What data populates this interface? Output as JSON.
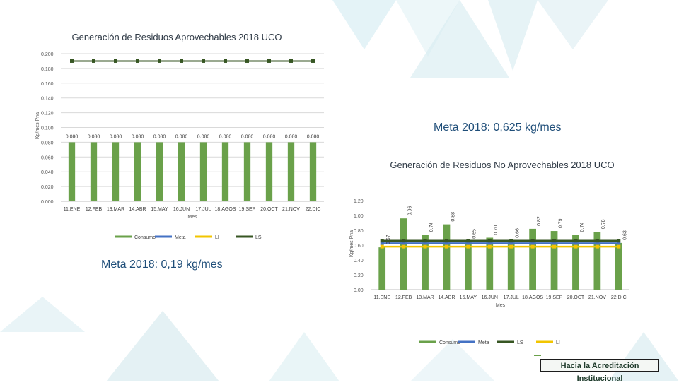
{
  "slide": {
    "meta_aprovechables": "Meta 2018: 0,19 kg/mes",
    "meta_no_aprovechables": "Meta 2018: 0,625 kg/mes",
    "logo_text": "Hacia la Acreditación Institucional"
  },
  "colors": {
    "consumo": "#6aa14a",
    "meta": "#4472c4",
    "li": "#f2c500",
    "ls": "#375623",
    "background_shapes": "#cfe6ec"
  },
  "chart_data": [
    {
      "type": "bar",
      "title": "Generación de Residuos Aprovechables 2018 UCO",
      "xlabel": "Mes",
      "ylabel": "Kg/mes Pna",
      "ylim": [
        0,
        0.2
      ],
      "yticks": [
        "0.000",
        "0.020",
        "0.040",
        "0.060",
        "0.080",
        "0.100",
        "0.120",
        "0.140",
        "0.160",
        "0.180",
        "0.200"
      ],
      "categories": [
        "11.ENE",
        "12.FEB",
        "13.MAR",
        "14.ABR",
        "15.MAY",
        "16.JUN",
        "17.JUL",
        "18.AGOS",
        "19.SEP",
        "20.OCT",
        "21.NOV",
        "22.DIC"
      ],
      "bar_series": {
        "name": "Consumo",
        "values": [
          0.08,
          0.08,
          0.08,
          0.08,
          0.08,
          0.08,
          0.08,
          0.08,
          0.08,
          0.08,
          0.08,
          0.08
        ]
      },
      "data_labels": [
        "0.080",
        "0.080",
        "0.080",
        "0.080",
        "0.080",
        "0.080",
        "0.080",
        "0.080",
        "0.080",
        "0.080",
        "0.080",
        "0.080"
      ],
      "line_series": [
        {
          "name": "LS",
          "values": [
            0.19,
            0.19,
            0.19,
            0.19,
            0.19,
            0.19,
            0.19,
            0.19,
            0.19,
            0.19,
            0.19,
            0.19
          ]
        }
      ],
      "legend": [
        "Consumo",
        "Meta",
        "LI",
        "LS"
      ],
      "legend_position": "bottom",
      "grid": true
    },
    {
      "type": "bar",
      "title": "Generación de Residuos No Aprovechables 2018 UCO",
      "xlabel": "Mes",
      "ylabel": "Kg/mes Pna",
      "ylim": [
        0,
        1.2
      ],
      "yticks": [
        "0.00",
        "0.20",
        "0.40",
        "0.60",
        "0.80",
        "1.00",
        "1.20"
      ],
      "categories": [
        "11.ENE",
        "12.FEB",
        "13.MAR",
        "14.ABR",
        "15.MAY",
        "16.JUN",
        "17.JUL",
        "18.AGOS",
        "19.SEP",
        "20.OCT",
        "21.NOV",
        "22.DIC"
      ],
      "bar_series": {
        "name": "Consumo",
        "values": [
          0.57,
          0.96,
          0.74,
          0.88,
          0.65,
          0.7,
          0.66,
          0.82,
          0.79,
          0.74,
          0.78,
          0.63
        ]
      },
      "data_labels": [
        "0.57",
        "0.96",
        "0.74",
        "0.88",
        "0.65",
        "0.70",
        "0.66",
        "0.82",
        "0.79",
        "0.74",
        "0.78",
        "0.63"
      ],
      "line_series": [
        {
          "name": "Meta",
          "values": [
            0.625,
            0.625,
            0.625,
            0.625,
            0.625,
            0.625,
            0.625,
            0.625,
            0.625,
            0.625,
            0.625,
            0.625
          ]
        },
        {
          "name": "LS",
          "values": [
            0.66,
            0.66,
            0.66,
            0.66,
            0.66,
            0.66,
            0.66,
            0.66,
            0.66,
            0.66,
            0.66,
            0.66
          ]
        },
        {
          "name": "LI",
          "values": [
            0.58,
            0.58,
            0.58,
            0.58,
            0.58,
            0.58,
            0.58,
            0.58,
            0.58,
            0.58,
            0.58,
            0.58
          ]
        }
      ],
      "legend": [
        "Consumo",
        "Meta",
        "LS",
        "LI"
      ],
      "legend_position": "bottom",
      "grid": false
    }
  ]
}
